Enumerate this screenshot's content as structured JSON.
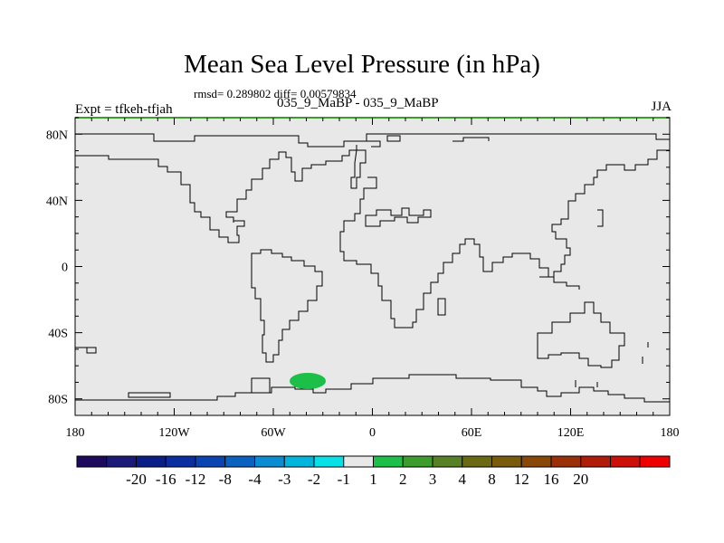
{
  "title": "Mean Sea Level Pressure (in hPa)",
  "stats": "rmsd= 0.289802 diff= 0.00579834",
  "experiment": "Expt = tfkeh-tfjah",
  "runs": "035_9_MaBP - 035_9_MaBP",
  "season": "JJA",
  "x_ticks": [
    "180",
    "120W",
    "60W",
    "0",
    "60E",
    "120E",
    "180"
  ],
  "y_ticks": [
    "80N",
    "40N",
    "0",
    "40S",
    "80S"
  ],
  "colorbar": {
    "colors": [
      "#1e0a5c",
      "#1c1a78",
      "#0a1e88",
      "#0a2ea0",
      "#0a44b0",
      "#0a62c0",
      "#0a8cd0",
      "#00b4dc",
      "#08e0e8",
      "#e8e8e8",
      "#1cc048",
      "#3c9c2c",
      "#588024",
      "#6a6a14",
      "#7a5a0c",
      "#8a4808",
      "#9a3008",
      "#b01c08",
      "#cc1008",
      "#ee0000"
    ],
    "labels": [
      "-20",
      "-16",
      "-12",
      "-8",
      "-4",
      "-3",
      "-2",
      "-1",
      "1",
      "2",
      "3",
      "4",
      "8",
      "12",
      "16",
      "20"
    ]
  },
  "colors": {
    "ocean": "#e8e8e8",
    "coast": "#000000",
    "anomaly": "#1cc048",
    "top_border": "#3c9c2c"
  }
}
